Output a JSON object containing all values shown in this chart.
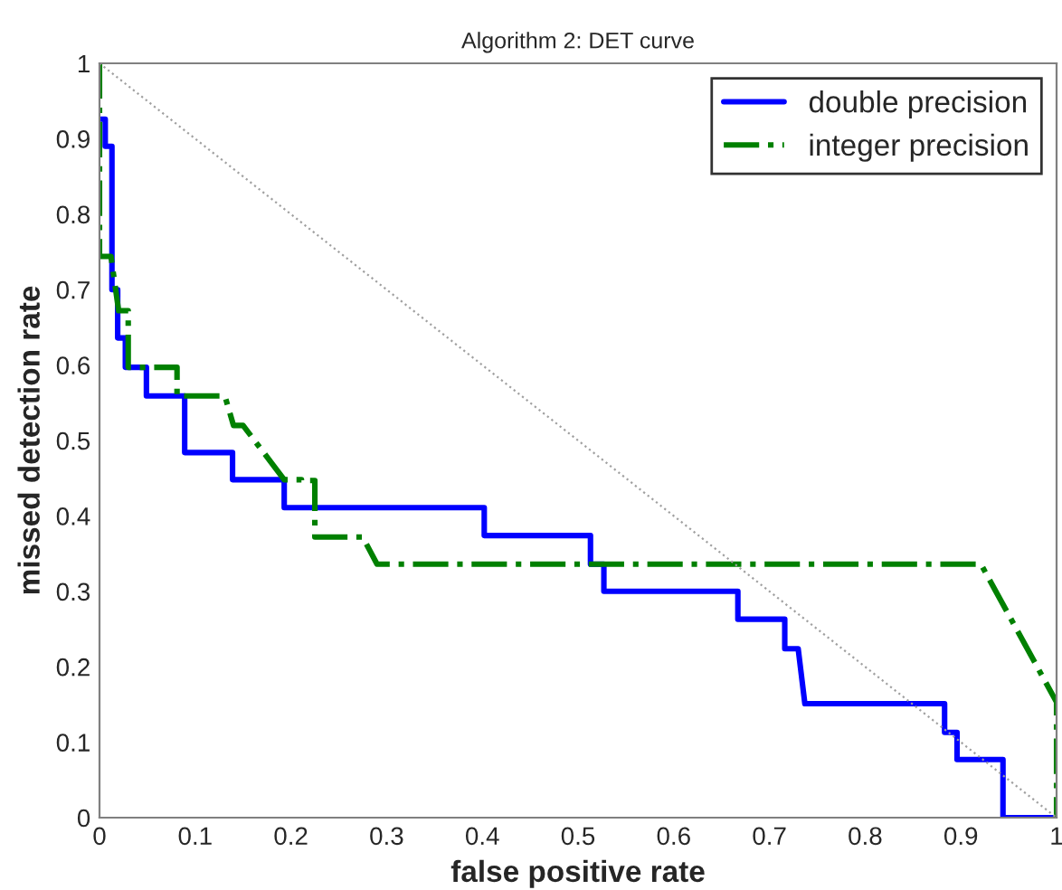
{
  "chart_data": {
    "type": "line",
    "title": "Algorithm 2: DET curve",
    "xlabel": "false positive rate",
    "ylabel": "missed detection rate",
    "xlim": [
      0,
      1
    ],
    "ylim": [
      0,
      1
    ],
    "xticks": [
      0,
      0.1,
      0.2,
      0.3,
      0.4,
      0.5,
      0.6,
      0.7,
      0.8,
      0.9,
      1
    ],
    "yticks": [
      0,
      0.1,
      0.2,
      0.3,
      0.4,
      0.5,
      0.6,
      0.7,
      0.8,
      0.9,
      1
    ],
    "grid": false,
    "legend": "top right",
    "marker": "none",
    "series": [
      {
        "name": "double precision",
        "color": "#0000ff",
        "line_style": "solid",
        "x": [
          0,
          0.006,
          0.006,
          0.013,
          0.013,
          0.019,
          0.019,
          0.027,
          0.027,
          0.049,
          0.049,
          0.089,
          0.089,
          0.139,
          0.139,
          0.193,
          0.193,
          0.402,
          0.402,
          0.513,
          0.513,
          0.527,
          0.527,
          0.667,
          0.667,
          0.716,
          0.716,
          0.73,
          0.737,
          0.883,
          0.883,
          0.896,
          0.896,
          0.944,
          0.944,
          1
        ],
        "values": [
          0.926,
          0.926,
          0.89,
          0.89,
          0.7,
          0.7,
          0.636,
          0.636,
          0.597,
          0.597,
          0.559,
          0.559,
          0.484,
          0.484,
          0.448,
          0.448,
          0.411,
          0.411,
          0.374,
          0.374,
          0.336,
          0.336,
          0.3,
          0.3,
          0.263,
          0.263,
          0.224,
          0.224,
          0.151,
          0.151,
          0.113,
          0.113,
          0.077,
          0.077,
          0,
          0
        ]
      },
      {
        "name": "integer precision",
        "color": "#008000",
        "line_style": "dashdot",
        "x": [
          0,
          0,
          0.012,
          0.02,
          0.02,
          0.03,
          0.03,
          0.081,
          0.081,
          0.131,
          0.14,
          0.15,
          0.193,
          0.211,
          0.211,
          0.225,
          0.225,
          0.275,
          0.29,
          0.921,
          1,
          1
        ],
        "values": [
          1,
          0.744,
          0.744,
          0.672,
          0.672,
          0.672,
          0.597,
          0.597,
          0.559,
          0.559,
          0.52,
          0.52,
          0.448,
          0.448,
          0.447,
          0.447,
          0.372,
          0.372,
          0.336,
          0.336,
          0.153,
          0
        ]
      },
      {
        "color": "#a0a0a0",
        "line_style": "dotted",
        "x": [
          0,
          1
        ],
        "values": [
          1,
          0
        ]
      }
    ]
  }
}
